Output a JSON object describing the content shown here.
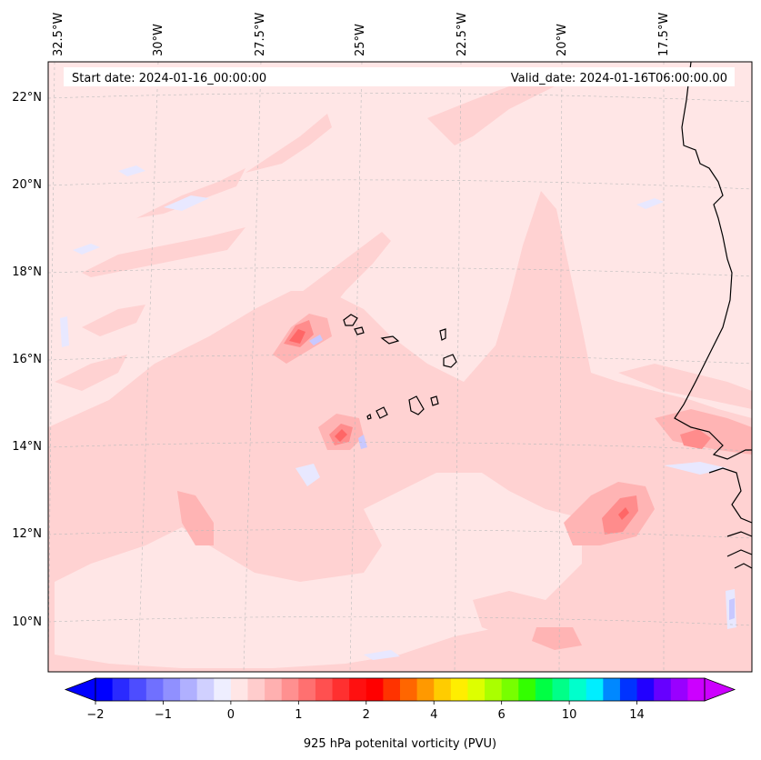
{
  "header": {
    "start_date": "Start date: 2024-01-16_00:00:00",
    "valid_date": "Valid_date: 2024-01-16T06:00:00.00"
  },
  "map": {
    "lon_labels": [
      "32.5°W",
      "30°W",
      "27.5°W",
      "25°W",
      "22.5°W",
      "20°W",
      "17.5°W"
    ],
    "lat_labels": [
      "22°N",
      "20°N",
      "18°N",
      "16°N",
      "14°N",
      "12°N",
      "10°N"
    ],
    "field": "925 hPa potenital vorticity",
    "units": "PVU"
  },
  "colorbar": {
    "title": "925 hPa potenital vorticity (PVU)",
    "tick_labels": [
      "−2",
      "−1",
      "0",
      "1",
      "2",
      "4",
      "6",
      "10",
      "14"
    ],
    "colors": [
      "#0000ff",
      "#2a2aff",
      "#4d4dff",
      "#7070ff",
      "#9090ff",
      "#b0b0ff",
      "#d0d0ff",
      "#eeeeff",
      "#ffe6e6",
      "#ffcccc",
      "#ffb0b0",
      "#ff9090",
      "#ff7070",
      "#ff5050",
      "#ff3030",
      "#ff1010",
      "#ff0000",
      "#ff3300",
      "#ff6600",
      "#ff9900",
      "#ffcc00",
      "#ffee00",
      "#ddff00",
      "#aaff00",
      "#77ff00",
      "#33ff00",
      "#00ff44",
      "#00ff88",
      "#00ffcc",
      "#00eeff",
      "#0088ff",
      "#0033ff",
      "#2200ff",
      "#6600ff",
      "#9900ff",
      "#cc00ff"
    ]
  }
}
